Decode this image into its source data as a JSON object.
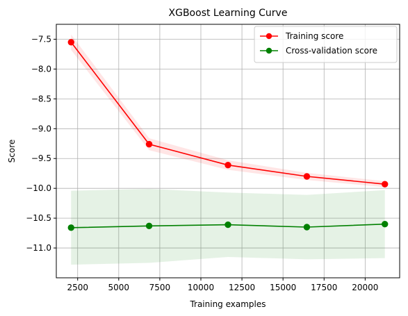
{
  "chart_data": {
    "type": "line",
    "title": "XGBoost Learning Curve",
    "xlabel": "Training examples",
    "ylabel": "Score",
    "xlim": [
      1200,
      22100
    ],
    "ylim": [
      -11.5,
      -7.25
    ],
    "xticks": [
      2500,
      5000,
      7500,
      10000,
      12500,
      15000,
      17500,
      20000
    ],
    "xtick_labels": [
      "2500",
      "5000",
      "7500",
      "10000",
      "12500",
      "15000",
      "17500",
      "20000"
    ],
    "yticks": [
      -11.0,
      -10.5,
      -10.0,
      -9.5,
      -9.0,
      -8.5,
      -8.0,
      -7.5
    ],
    "ytick_labels": [
      "−11.0",
      "−10.5",
      "−10.0",
      "−9.5",
      "−9.0",
      "−8.5",
      "−8.0",
      "−7.5"
    ],
    "grid": true,
    "legend_position": "upper-right",
    "x": [
      2100,
      6850,
      11650,
      16450,
      21200
    ],
    "series": [
      {
        "name": "Training score",
        "color": "#ff0000",
        "band_color": "#ff0000",
        "values": [
          -7.55,
          -9.26,
          -9.61,
          -9.8,
          -9.93
        ],
        "band_upper": [
          -7.42,
          -9.16,
          -9.53,
          -9.74,
          -9.88
        ],
        "band_lower": [
          -7.68,
          -9.36,
          -9.69,
          -9.86,
          -9.98
        ]
      },
      {
        "name": "Cross-validation score",
        "color": "#008000",
        "band_color": "#008000",
        "values": [
          -10.66,
          -10.63,
          -10.61,
          -10.65,
          -10.6
        ],
        "band_upper": [
          -10.04,
          -10.01,
          -10.07,
          -10.11,
          -10.03
        ],
        "band_lower": [
          -11.28,
          -11.25,
          -11.15,
          -11.19,
          -11.17
        ]
      }
    ]
  }
}
